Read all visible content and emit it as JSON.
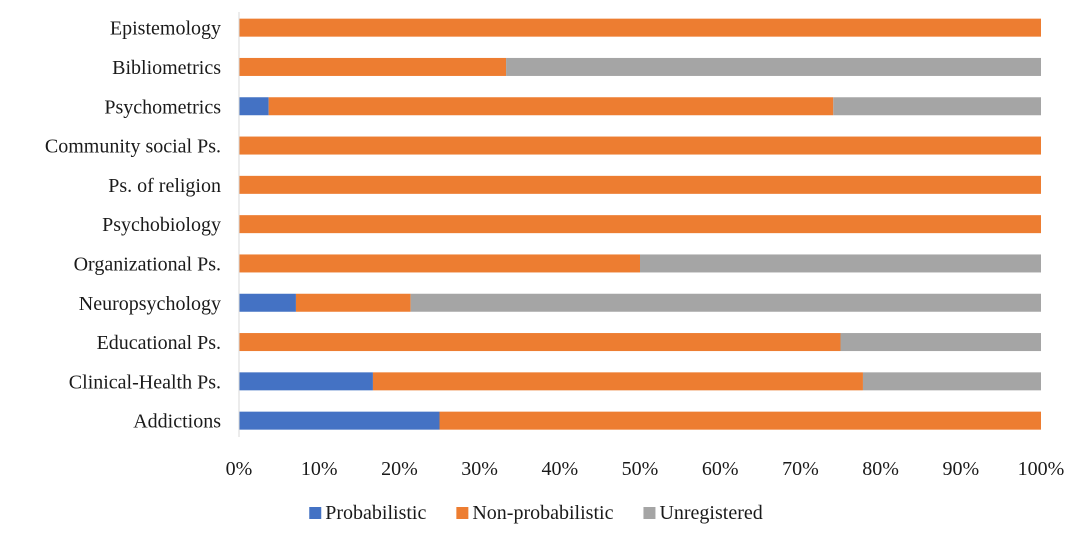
{
  "chart_data": {
    "type": "bar",
    "orientation": "horizontal",
    "stacked": "percent",
    "categories": [
      "Epistemology",
      "Bibliometrics",
      "Psychometrics",
      "Community social Ps.",
      "Ps. of religion",
      "Psychobiology",
      "Organizational Ps.",
      "Neuropsychology",
      "Educational Ps.",
      "Clinical-Health Ps.",
      "Addictions"
    ],
    "series": [
      {
        "name": "Probabilistic",
        "color": "#4472c4",
        "values": [
          0,
          0,
          3.7,
          0,
          0,
          0,
          0,
          7.1,
          0,
          16.7,
          25
        ]
      },
      {
        "name": "Non-probabilistic",
        "color": "#ed7d31",
        "values": [
          100,
          33.3,
          70.4,
          100,
          100,
          100,
          50,
          14.3,
          75,
          61.1,
          75
        ]
      },
      {
        "name": "Unregistered",
        "color": "#a5a5a5",
        "values": [
          0,
          66.7,
          25.9,
          0,
          0,
          0,
          50,
          78.6,
          25,
          22.2,
          0
        ]
      }
    ],
    "xticks": [
      "0%",
      "10%",
      "20%",
      "30%",
      "40%",
      "50%",
      "60%",
      "70%",
      "80%",
      "90%",
      "100%"
    ],
    "xlim": [
      0,
      100
    ],
    "title": "",
    "xlabel": "",
    "ylabel": "",
    "grid": false,
    "legend_position": "bottom"
  }
}
